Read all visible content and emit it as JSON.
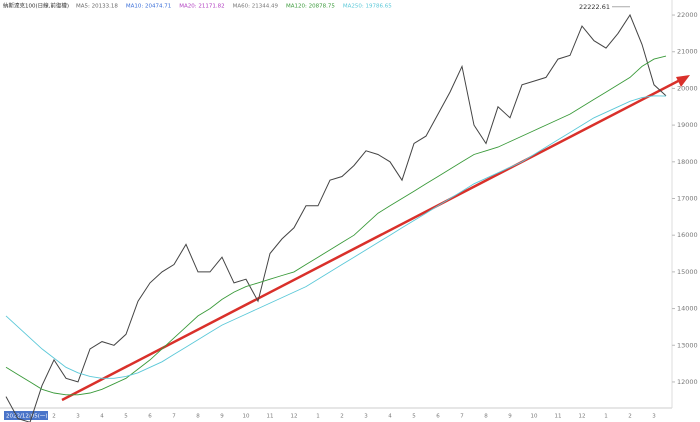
{
  "chart_data": {
    "type": "line",
    "title": "納斯達克100(日線,前復權)",
    "legend_extra": [
      {
        "text": "MA5: 20133.18",
        "color": "#666666"
      },
      {
        "text": "MA10: 20474.71",
        "color": "#3b6fd8"
      },
      {
        "text": "MA20: 21171.82",
        "color": "#b03cc0"
      },
      {
        "text": "MA60: 21344.49",
        "color": "#777777"
      }
    ],
    "categories": [
      "2022/12/05(一)",
      null,
      "1",
      null,
      "2",
      null,
      "3",
      null,
      "4",
      null,
      "5",
      null,
      "6",
      null,
      "7",
      null,
      "8",
      null,
      "9",
      null,
      "10",
      null,
      "11",
      null,
      "12",
      null,
      "1",
      null,
      "2",
      null,
      "3",
      null,
      "4",
      null,
      "5",
      null,
      "6",
      null,
      "7",
      null,
      "8",
      null,
      "9",
      null,
      "10",
      null,
      "11",
      null,
      "12",
      null,
      "1",
      null,
      "2",
      null,
      "3",
      null
    ],
    "series": [
      {
        "color": "#444444",
        "values": [
          11600,
          11000,
          10900,
          11900,
          12600,
          12100,
          12000,
          12900,
          13100,
          13000,
          13300,
          14200,
          14700,
          15000,
          15200,
          15750,
          15000,
          15000,
          15400,
          14700,
          14800,
          14200,
          15500,
          15900,
          16200,
          16800,
          16800,
          17500,
          17600,
          17900,
          18300,
          18200,
          18000,
          17500,
          18500,
          18700,
          19300,
          19900,
          20600,
          19000,
          18500,
          19500,
          19200,
          20100,
          20200,
          20300,
          20800,
          20900,
          21700,
          21300,
          21100,
          21500,
          22000,
          21200,
          20100,
          19800
        ]
      },
      {
        "name": "MA120: 20878.75",
        "color": "#3a9a3a",
        "values": [
          12400,
          12200,
          12000,
          11800,
          11700,
          11650,
          11650,
          11700,
          11800,
          11950,
          12100,
          12350,
          12600,
          12900,
          13200,
          13500,
          13800,
          14000,
          14250,
          14450,
          14600,
          14700,
          14800,
          14900,
          15000,
          15200,
          15400,
          15600,
          15800,
          16000,
          16300,
          16600,
          16800,
          17000,
          17200,
          17400,
          17600,
          17800,
          18000,
          18200,
          18300,
          18400,
          18550,
          18700,
          18850,
          19000,
          19150,
          19300,
          19500,
          19700,
          19900,
          20100,
          20300,
          20600,
          20800,
          20880
        ]
      },
      {
        "name": "MA250: 19786.65",
        "color": "#5bc8d8",
        "values": [
          13800,
          13500,
          13200,
          12900,
          12650,
          12400,
          12250,
          12150,
          12100,
          12100,
          12150,
          12250,
          12400,
          12550,
          12750,
          12950,
          13150,
          13350,
          13550,
          13700,
          13850,
          14000,
          14150,
          14300,
          14450,
          14600,
          14800,
          15000,
          15200,
          15400,
          15600,
          15800,
          16000,
          16200,
          16400,
          16600,
          16800,
          17000,
          17200,
          17400,
          17550,
          17700,
          17850,
          18000,
          18200,
          18400,
          18600,
          18800,
          19000,
          19200,
          19350,
          19500,
          19650,
          19750,
          19800,
          19790
        ]
      }
    ],
    "high": 22222.61,
    "low": 10632.36,
    "ylim": [
      11290,
      22410
    ],
    "yticks": [
      12000,
      13000,
      14000,
      15000,
      16000,
      17000,
      18000,
      19000,
      20000,
      21000,
      22000
    ]
  }
}
